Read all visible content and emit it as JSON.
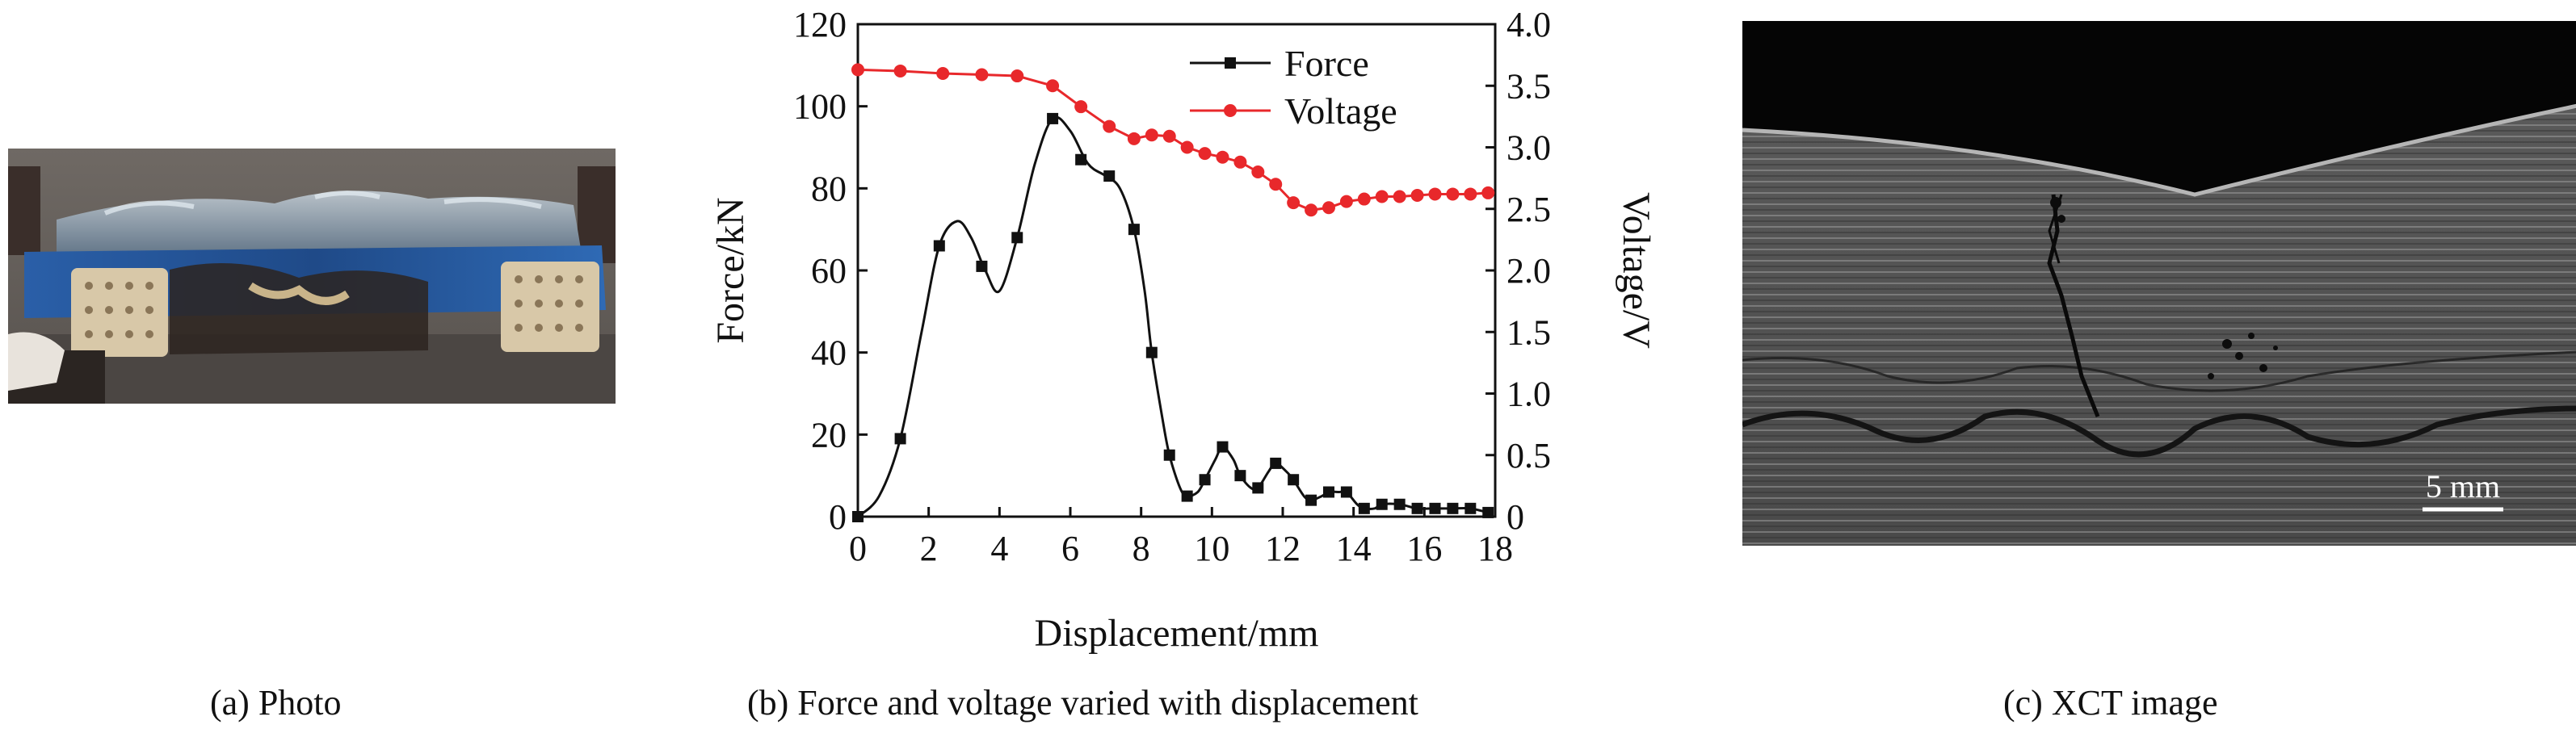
{
  "panels": {
    "a": {
      "caption": "(a) Photo"
    },
    "b": {
      "caption": "(b) Force and voltage varied with displacement"
    },
    "c": {
      "caption": "(c) XCT image",
      "scale_bar_label": "5 mm"
    }
  },
  "chart_data": {
    "type": "line",
    "xlabel": "Displacement/mm",
    "ylabel": "Force/kN",
    "y2label": "Voltage/V",
    "xlim": [
      0,
      18
    ],
    "ylim": [
      0,
      120
    ],
    "y2lim": [
      0,
      4.0
    ],
    "x_ticks": [
      "0",
      "2",
      "4",
      "6",
      "8",
      "10",
      "12",
      "14",
      "16",
      "18"
    ],
    "y_ticks": [
      "0",
      "20",
      "40",
      "60",
      "80",
      "100",
      "120"
    ],
    "y2_ticks": [
      "0",
      "0.5",
      "1.0",
      "1.5",
      "2.0",
      "2.5",
      "3.0",
      "3.5",
      "4.0"
    ],
    "legend_position": "top-right",
    "series": [
      {
        "name": "Force",
        "axis": "left",
        "color": "#111111",
        "marker": "square",
        "markers": [
          [
            0,
            0
          ],
          [
            1.2,
            19
          ],
          [
            2.3,
            66
          ],
          [
            3.5,
            61
          ],
          [
            4.5,
            68
          ],
          [
            5.5,
            97
          ],
          [
            6.3,
            87
          ],
          [
            7.1,
            83
          ],
          [
            7.8,
            70
          ],
          [
            8.3,
            40
          ],
          [
            8.8,
            15
          ],
          [
            9.3,
            5
          ],
          [
            9.8,
            9
          ],
          [
            10.3,
            17
          ],
          [
            10.8,
            10
          ],
          [
            11.3,
            7
          ],
          [
            11.8,
            13
          ],
          [
            12.3,
            9
          ],
          [
            12.8,
            4
          ],
          [
            13.3,
            6
          ],
          [
            13.8,
            6
          ],
          [
            14.3,
            2
          ],
          [
            14.8,
            3
          ],
          [
            15.3,
            3
          ],
          [
            15.8,
            2
          ],
          [
            16.3,
            2
          ],
          [
            16.8,
            2
          ],
          [
            17.3,
            2
          ],
          [
            17.8,
            1
          ]
        ],
        "curve": [
          [
            0,
            0
          ],
          [
            0.6,
            5
          ],
          [
            1.2,
            19
          ],
          [
            1.8,
            45
          ],
          [
            2.3,
            66
          ],
          [
            2.8,
            72
          ],
          [
            3.2,
            68
          ],
          [
            3.6,
            60
          ],
          [
            4.0,
            55
          ],
          [
            4.5,
            68
          ],
          [
            5.0,
            86
          ],
          [
            5.5,
            97
          ],
          [
            6.0,
            94
          ],
          [
            6.5,
            86
          ],
          [
            7.0,
            83
          ],
          [
            7.4,
            80
          ],
          [
            7.8,
            70
          ],
          [
            8.1,
            55
          ],
          [
            8.3,
            40
          ],
          [
            8.6,
            24
          ],
          [
            8.8,
            15
          ],
          [
            9.1,
            7
          ],
          [
            9.3,
            5
          ],
          [
            9.6,
            6
          ],
          [
            9.8,
            9
          ],
          [
            10.1,
            14
          ],
          [
            10.3,
            17
          ],
          [
            10.6,
            14
          ],
          [
            10.8,
            10
          ],
          [
            11.1,
            7
          ],
          [
            11.3,
            7
          ],
          [
            11.6,
            11
          ],
          [
            11.8,
            13
          ],
          [
            12.1,
            11
          ],
          [
            12.3,
            9
          ],
          [
            12.6,
            5
          ],
          [
            12.8,
            4
          ],
          [
            13.1,
            5
          ],
          [
            13.3,
            6
          ],
          [
            13.6,
            6
          ],
          [
            13.8,
            6
          ],
          [
            14.1,
            3
          ],
          [
            14.3,
            2
          ],
          [
            14.6,
            2
          ],
          [
            14.8,
            3
          ],
          [
            15.3,
            3
          ],
          [
            15.8,
            2
          ],
          [
            16.3,
            2
          ],
          [
            16.8,
            2
          ],
          [
            17.3,
            2
          ],
          [
            17.8,
            1
          ]
        ]
      },
      {
        "name": "Voltage",
        "axis": "right",
        "color": "#e8282b",
        "marker": "circle",
        "points": [
          [
            0,
            3.63
          ],
          [
            1.2,
            3.62
          ],
          [
            2.4,
            3.6
          ],
          [
            3.5,
            3.59
          ],
          [
            4.5,
            3.58
          ],
          [
            5.5,
            3.5
          ],
          [
            6.3,
            3.33
          ],
          [
            7.1,
            3.17
          ],
          [
            7.8,
            3.07
          ],
          [
            8.3,
            3.1
          ],
          [
            8.8,
            3.09
          ],
          [
            9.3,
            3.0
          ],
          [
            9.8,
            2.95
          ],
          [
            10.3,
            2.92
          ],
          [
            10.8,
            2.88
          ],
          [
            11.3,
            2.8
          ],
          [
            11.8,
            2.7
          ],
          [
            12.3,
            2.55
          ],
          [
            12.8,
            2.49
          ],
          [
            13.3,
            2.51
          ],
          [
            13.8,
            2.56
          ],
          [
            14.3,
            2.58
          ],
          [
            14.8,
            2.6
          ],
          [
            15.3,
            2.6
          ],
          [
            15.8,
            2.61
          ],
          [
            16.3,
            2.62
          ],
          [
            16.8,
            2.62
          ],
          [
            17.3,
            2.62
          ],
          [
            17.8,
            2.63
          ]
        ]
      }
    ]
  },
  "colors": {
    "force": "#111111",
    "voltage": "#e8282b"
  }
}
